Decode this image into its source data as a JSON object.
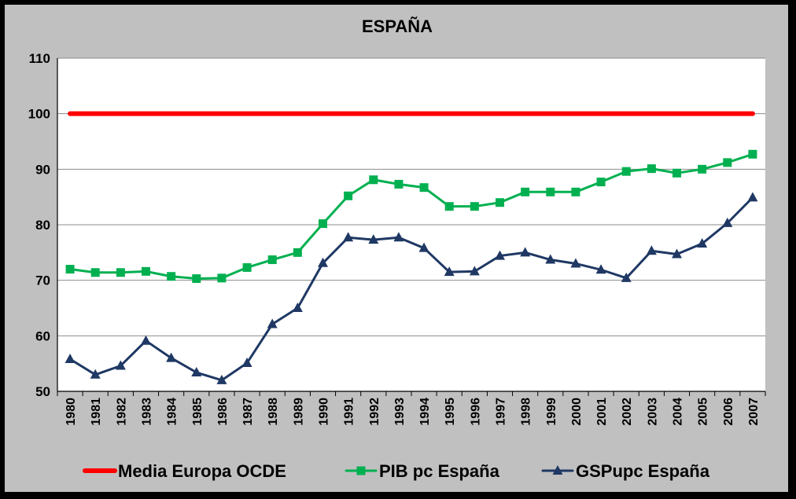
{
  "chart_data": {
    "type": "line",
    "title": "ESPAÑA",
    "xlabel": "",
    "ylabel": "",
    "ylim": [
      50,
      110
    ],
    "yticks": [
      50,
      60,
      70,
      80,
      90,
      100,
      110
    ],
    "grid": true,
    "legend_position": "bottom",
    "categories": [
      "1980",
      "1981",
      "1982",
      "1983",
      "1984",
      "1985",
      "1986",
      "1987",
      "1988",
      "1989",
      "1990",
      "1991",
      "1992",
      "1993",
      "1994",
      "1995",
      "1996",
      "1997",
      "1998",
      "1999",
      "2000",
      "2001",
      "2002",
      "2003",
      "2004",
      "2005",
      "2006",
      "2007"
    ],
    "series": [
      {
        "name": "Media Europa OCDE",
        "marker": "none",
        "color": "#ff0000",
        "values": [
          100,
          100,
          100,
          100,
          100,
          100,
          100,
          100,
          100,
          100,
          100,
          100,
          100,
          100,
          100,
          100,
          100,
          100,
          100,
          100,
          100,
          100,
          100,
          100,
          100,
          100,
          100,
          100
        ]
      },
      {
        "name": "PIB pc España",
        "marker": "square",
        "color": "#00b050",
        "values": [
          72.0,
          71.4,
          71.4,
          71.6,
          70.7,
          70.3,
          70.4,
          72.3,
          73.7,
          75.0,
          80.2,
          85.2,
          88.1,
          87.3,
          86.7,
          83.3,
          83.3,
          84.0,
          85.9,
          85.9,
          85.9,
          87.7,
          89.6,
          90.1,
          89.3,
          90.0,
          91.2,
          92.7
        ]
      },
      {
        "name": "GSPupc España",
        "marker": "triangle",
        "color": "#1f3864",
        "values": [
          55.8,
          53.0,
          54.6,
          59.1,
          56.0,
          53.4,
          52.0,
          55.1,
          62.1,
          65.0,
          73.1,
          77.7,
          77.3,
          77.7,
          75.8,
          71.5,
          71.6,
          74.4,
          75.0,
          73.7,
          73.0,
          71.9,
          70.4,
          75.3,
          74.7,
          76.6,
          80.3,
          84.9
        ]
      }
    ]
  }
}
